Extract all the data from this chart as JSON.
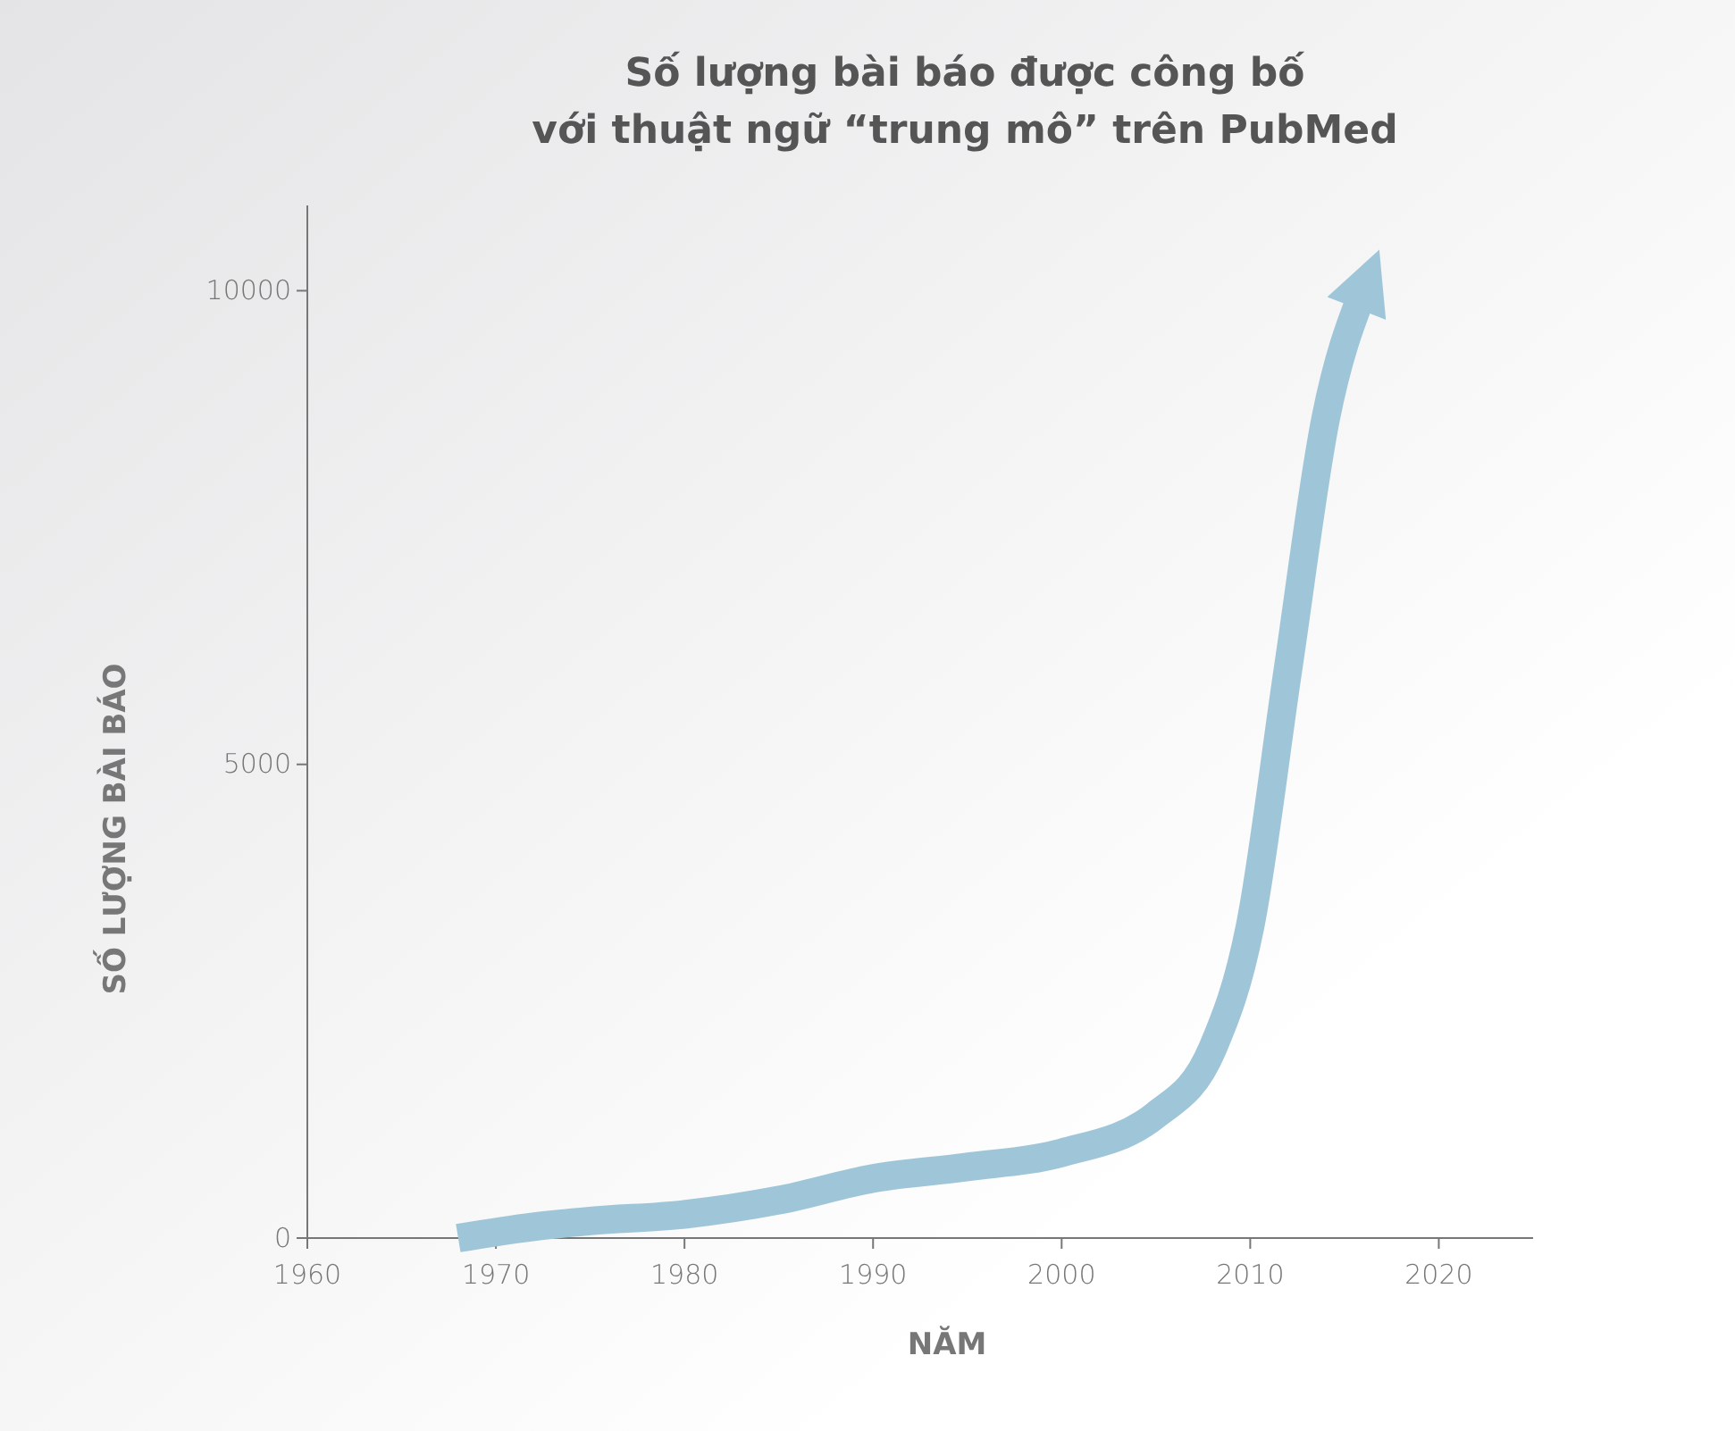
{
  "chart_data": {
    "type": "line",
    "title": "Số lượng bài báo được công bố\nvới thuật ngữ “trung mô” trên PubMed",
    "xlabel": "NĂM",
    "ylabel": "SỐ LƯỢNG BÀI BÁO",
    "x": [
      1968,
      1972,
      1975,
      1980,
      1985,
      1990,
      1995,
      2000,
      2005,
      2008,
      2010,
      2012,
      2014,
      2016
    ],
    "series": [
      {
        "color": "#9fc6d8",
        "values": [
          0,
          120,
          180,
          250,
          400,
          630,
          750,
          900,
          1300,
          2000,
          3300,
          6000,
          8650,
          10000
        ]
      }
    ],
    "xlim": [
      1960,
      2025
    ],
    "xticks": [
      1960,
      1970,
      1980,
      1990,
      2000,
      2010,
      2020
    ],
    "ylim": [
      0,
      10900
    ],
    "yticks": [
      0,
      5000,
      10000
    ],
    "grid": false,
    "marker": "none",
    "line_style": "solid"
  }
}
